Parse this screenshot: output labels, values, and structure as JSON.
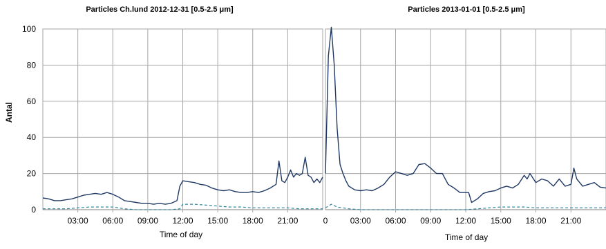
{
  "chart_data": [
    {
      "type": "line",
      "title": "Particles Ch.lund 2012-12-31  [0.5-2.5 μm]",
      "xlabel": "Time of day",
      "ylabel": "Antal",
      "ylim": [
        0,
        100
      ],
      "yticks": [
        "0",
        "20",
        "40",
        "60",
        "80",
        "100"
      ],
      "xlim": [
        0,
        24
      ],
      "xticks": [
        "03:00",
        "06:00",
        "09:00",
        "12:00",
        "15:00",
        "18:00",
        "21:00"
      ],
      "grid": true,
      "series": [
        {
          "color": "#1f3864",
          "dash": "solid",
          "x": [
            0,
            0.5,
            1,
            1.5,
            2,
            2.5,
            3,
            3.5,
            4,
            4.5,
            5,
            5.5,
            6,
            6.5,
            7,
            7.5,
            8,
            8.5,
            9,
            9.5,
            10,
            10.5,
            11,
            11.5,
            11.75,
            12,
            12.5,
            13,
            13.5,
            14,
            14.5,
            15,
            15.5,
            16,
            16.5,
            17,
            17.5,
            18,
            18.5,
            19,
            19.5,
            20,
            20.25,
            20.5,
            20.75,
            21,
            21.25,
            21.5,
            21.75,
            22,
            22.25,
            22.5,
            22.75,
            23,
            23.25,
            23.5,
            23.75,
            24
          ],
          "y": [
            6.5,
            6,
            5,
            5,
            5.5,
            6,
            7,
            8,
            8.5,
            9,
            8.5,
            9.5,
            8.5,
            7,
            5,
            4.5,
            4,
            3.5,
            3.5,
            3,
            3.5,
            3,
            3.5,
            5,
            13,
            16,
            15.5,
            15,
            14,
            13.5,
            12,
            11,
            10.5,
            11,
            10,
            9.5,
            9.5,
            10,
            9.5,
            10.5,
            12,
            14,
            27,
            16,
            15,
            18,
            22,
            18,
            20,
            19,
            20,
            29,
            19,
            18,
            15,
            17,
            15,
            18
          ]
        },
        {
          "color": "#31859c",
          "dash": "dashed",
          "x": [
            0,
            1,
            2,
            3,
            4,
            5,
            6,
            7,
            8,
            9,
            10,
            11,
            11.75,
            12,
            13,
            14,
            15,
            16,
            17,
            18,
            19,
            20,
            21,
            22,
            23,
            24
          ],
          "y": [
            0.5,
            0.5,
            0.5,
            1,
            1.5,
            1.5,
            1.5,
            0.5,
            0,
            0,
            0,
            0,
            0.5,
            3,
            3,
            2.5,
            2,
            1.5,
            1.5,
            1,
            1,
            1,
            1,
            0.5,
            0.5,
            0.5
          ]
        }
      ]
    },
    {
      "type": "line",
      "title": "Particles 2013-01-01  [0.5-2.5 μm]",
      "xlabel": "Time of day",
      "ylabel": "",
      "ylim": [
        0,
        100
      ],
      "xlim": [
        0,
        24
      ],
      "xticks": [
        "0",
        "03:00",
        "06:00",
        "09:00",
        "12:00",
        "15:00",
        "18:00",
        "21:00"
      ],
      "grid": true,
      "series": [
        {
          "color": "#1f3864",
          "dash": "solid",
          "x": [
            0,
            0.25,
            0.5,
            0.75,
            1,
            1.25,
            1.5,
            1.75,
            2,
            2.5,
            3,
            3.5,
            4,
            4.5,
            5,
            5.5,
            6,
            6.5,
            7,
            7.5,
            8,
            8.5,
            9,
            9.5,
            10,
            10.5,
            11,
            11.5,
            12,
            12.25,
            12.5,
            13,
            13.5,
            14,
            14.5,
            15,
            15.5,
            16,
            16.5,
            17,
            17.25,
            17.5,
            18,
            18.5,
            19,
            19.5,
            20,
            20.5,
            21,
            21.25,
            21.5,
            22,
            22.5,
            23,
            23.5,
            24
          ],
          "y": [
            20,
            85,
            101,
            80,
            45,
            25,
            20,
            16,
            13,
            11,
            10.5,
            11,
            10.5,
            12,
            14,
            18,
            21,
            20,
            19,
            20,
            25,
            25.5,
            23,
            20,
            20,
            14,
            12,
            9.5,
            9.5,
            9.5,
            4,
            6,
            9,
            10,
            10.5,
            12,
            13,
            12,
            14,
            19,
            17,
            20,
            15,
            17,
            16,
            13,
            17,
            13,
            14,
            23,
            17,
            13,
            14,
            15,
            12.5,
            12
          ]
        },
        {
          "color": "#31859c",
          "dash": "dashed",
          "x": [
            0,
            0.5,
            1,
            2,
            3,
            4,
            5,
            6,
            7,
            8,
            9,
            10,
            11,
            12,
            13,
            14,
            15,
            16,
            17,
            18,
            19,
            20,
            21,
            22,
            23,
            24
          ],
          "y": [
            1,
            3,
            1.5,
            0.5,
            0,
            0,
            0,
            0,
            0,
            0,
            0,
            0,
            0,
            0,
            0.5,
            1,
            1.5,
            1.5,
            1.5,
            1,
            1,
            1,
            1,
            1,
            1,
            1
          ]
        }
      ]
    }
  ]
}
